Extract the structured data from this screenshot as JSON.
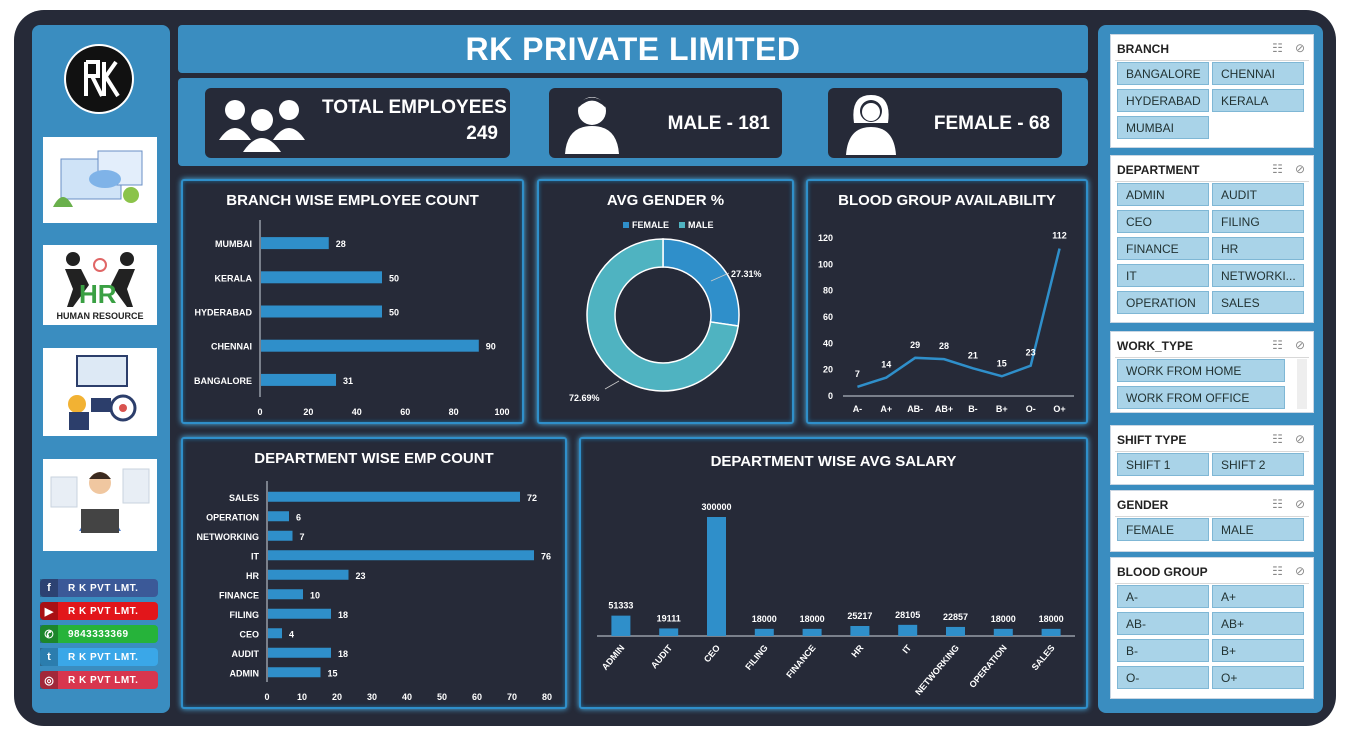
{
  "title": "RK PRIVATE LIMITED",
  "kpis": {
    "total_label": "TOTAL EMPLOYEES",
    "total_value": "249",
    "male": "MALE - 181",
    "female": "FEMALE - 68"
  },
  "sidebar": {
    "hr_label": "HUMAN RESOURCE",
    "social": [
      {
        "label": "R K PVT LMT.",
        "icon": "facebook-icon",
        "color": "#3b5998"
      },
      {
        "label": "R K PVT LMT.",
        "icon": "youtube-icon",
        "color": "#e2161b"
      },
      {
        "label": "9843333369",
        "icon": "whatsapp-icon",
        "color": "#26b33a"
      },
      {
        "label": "R K PVT LMT.",
        "icon": "twitter-icon",
        "color": "#3aa7e8"
      },
      {
        "label": "R K PVT LMT.",
        "icon": "instagram-icon",
        "color": "#d8364e"
      }
    ]
  },
  "colors": {
    "accent": "#3a8dc0",
    "bar": "#2f8fca",
    "dark": "#262a38",
    "donut_male": "#4fb3c1",
    "donut_female": "#2f8fca"
  },
  "chart_data": [
    {
      "type": "bar",
      "title": "BRANCH WISE EMPLOYEE COUNT",
      "orientation": "horizontal",
      "categories": [
        "MUMBAI",
        "KERALA",
        "HYDERABAD",
        "CHENNAI",
        "BANGALORE"
      ],
      "values": [
        28,
        50,
        50,
        90,
        31
      ],
      "xlim": [
        0,
        100
      ],
      "xticks": [
        "0",
        "20",
        "40",
        "60",
        "80",
        "100"
      ]
    },
    {
      "type": "pie",
      "title": "AVG GENDER %",
      "legend": [
        "FEMALE",
        "MALE"
      ],
      "values": [
        27.31,
        72.69
      ],
      "labels": [
        "27.31%",
        "72.69%"
      ]
    },
    {
      "type": "line",
      "title": "BLOOD GROUP AVAILABILITY",
      "categories": [
        "A-",
        "A+",
        "AB-",
        "AB+",
        "B-",
        "B+",
        "O-",
        "O+"
      ],
      "values": [
        7,
        14,
        29,
        28,
        21,
        15,
        23,
        112
      ],
      "ylim": [
        0,
        120
      ],
      "yticks": [
        "0",
        "20",
        "40",
        "60",
        "80",
        "100",
        "120"
      ]
    },
    {
      "type": "bar",
      "title": "DEPARTMENT WISE EMP COUNT",
      "orientation": "horizontal",
      "categories": [
        "SALES",
        "OPERATION",
        "NETWORKING",
        "IT",
        "HR",
        "FINANCE",
        "FILING",
        "CEO",
        "AUDIT",
        "ADMIN"
      ],
      "values": [
        72,
        6,
        7,
        76,
        23,
        10,
        18,
        4,
        18,
        15
      ],
      "xlim": [
        0,
        80
      ],
      "xticks": [
        "0",
        "10",
        "20",
        "30",
        "40",
        "50",
        "60",
        "70",
        "80"
      ]
    },
    {
      "type": "bar",
      "title": "DEPARTMENT WISE AVG SALARY",
      "categories": [
        "ADMIN",
        "AUDIT",
        "CEO",
        "FILING",
        "FINANCE",
        "HR",
        "IT",
        "NETWORKING",
        "OPERATION",
        "SALES"
      ],
      "values": [
        51333,
        19111,
        300000,
        18000,
        18000,
        25217,
        28105,
        22857,
        18000,
        18000
      ],
      "ylim": [
        0,
        300000
      ]
    }
  ],
  "slicers": [
    {
      "title": "BRANCH",
      "items": [
        "BANGALORE",
        "CHENNAI",
        "HYDERABAD",
        "KERALA",
        "MUMBAI"
      ]
    },
    {
      "title": "DEPARTMENT",
      "items": [
        "ADMIN",
        "AUDIT",
        "CEO",
        "FILING",
        "FINANCE",
        "HR",
        "IT",
        "NETWORKI...",
        "OPERATION",
        "SALES"
      ]
    },
    {
      "title": "WORK_TYPE",
      "items": [
        "WORK FROM HOME",
        "WORK FROM OFFICE"
      ]
    },
    {
      "title": "SHIFT TYPE",
      "items": [
        "SHIFT 1",
        "SHIFT 2"
      ]
    },
    {
      "title": "GENDER",
      "items": [
        "FEMALE",
        "MALE"
      ]
    },
    {
      "title": "BLOOD GROUP",
      "items": [
        "A-",
        "A+",
        "AB-",
        "AB+",
        "B-",
        "B+",
        "O-",
        "O+"
      ]
    }
  ]
}
